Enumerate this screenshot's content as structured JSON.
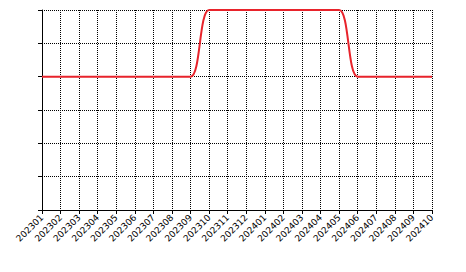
{
  "chart_data": {
    "type": "line",
    "categories": [
      "202301",
      "202302",
      "202303",
      "202304",
      "202305",
      "202306",
      "202307",
      "202308",
      "202309",
      "202310",
      "202311",
      "202312",
      "202401",
      "202402",
      "202403",
      "202404",
      "202405",
      "202406",
      "202407",
      "202408",
      "202409",
      "202410"
    ],
    "values": [
      4,
      4,
      4,
      4,
      4,
      4,
      4,
      4,
      4,
      6,
      6,
      6,
      6,
      6,
      6,
      6,
      6,
      4,
      4,
      4,
      4,
      4
    ],
    "color": "#e8232b",
    "ylim": [
      0,
      6
    ],
    "yticks": [
      0,
      1,
      2,
      3,
      4,
      5,
      6
    ],
    "grid": true,
    "tick_labels": "x"
  }
}
